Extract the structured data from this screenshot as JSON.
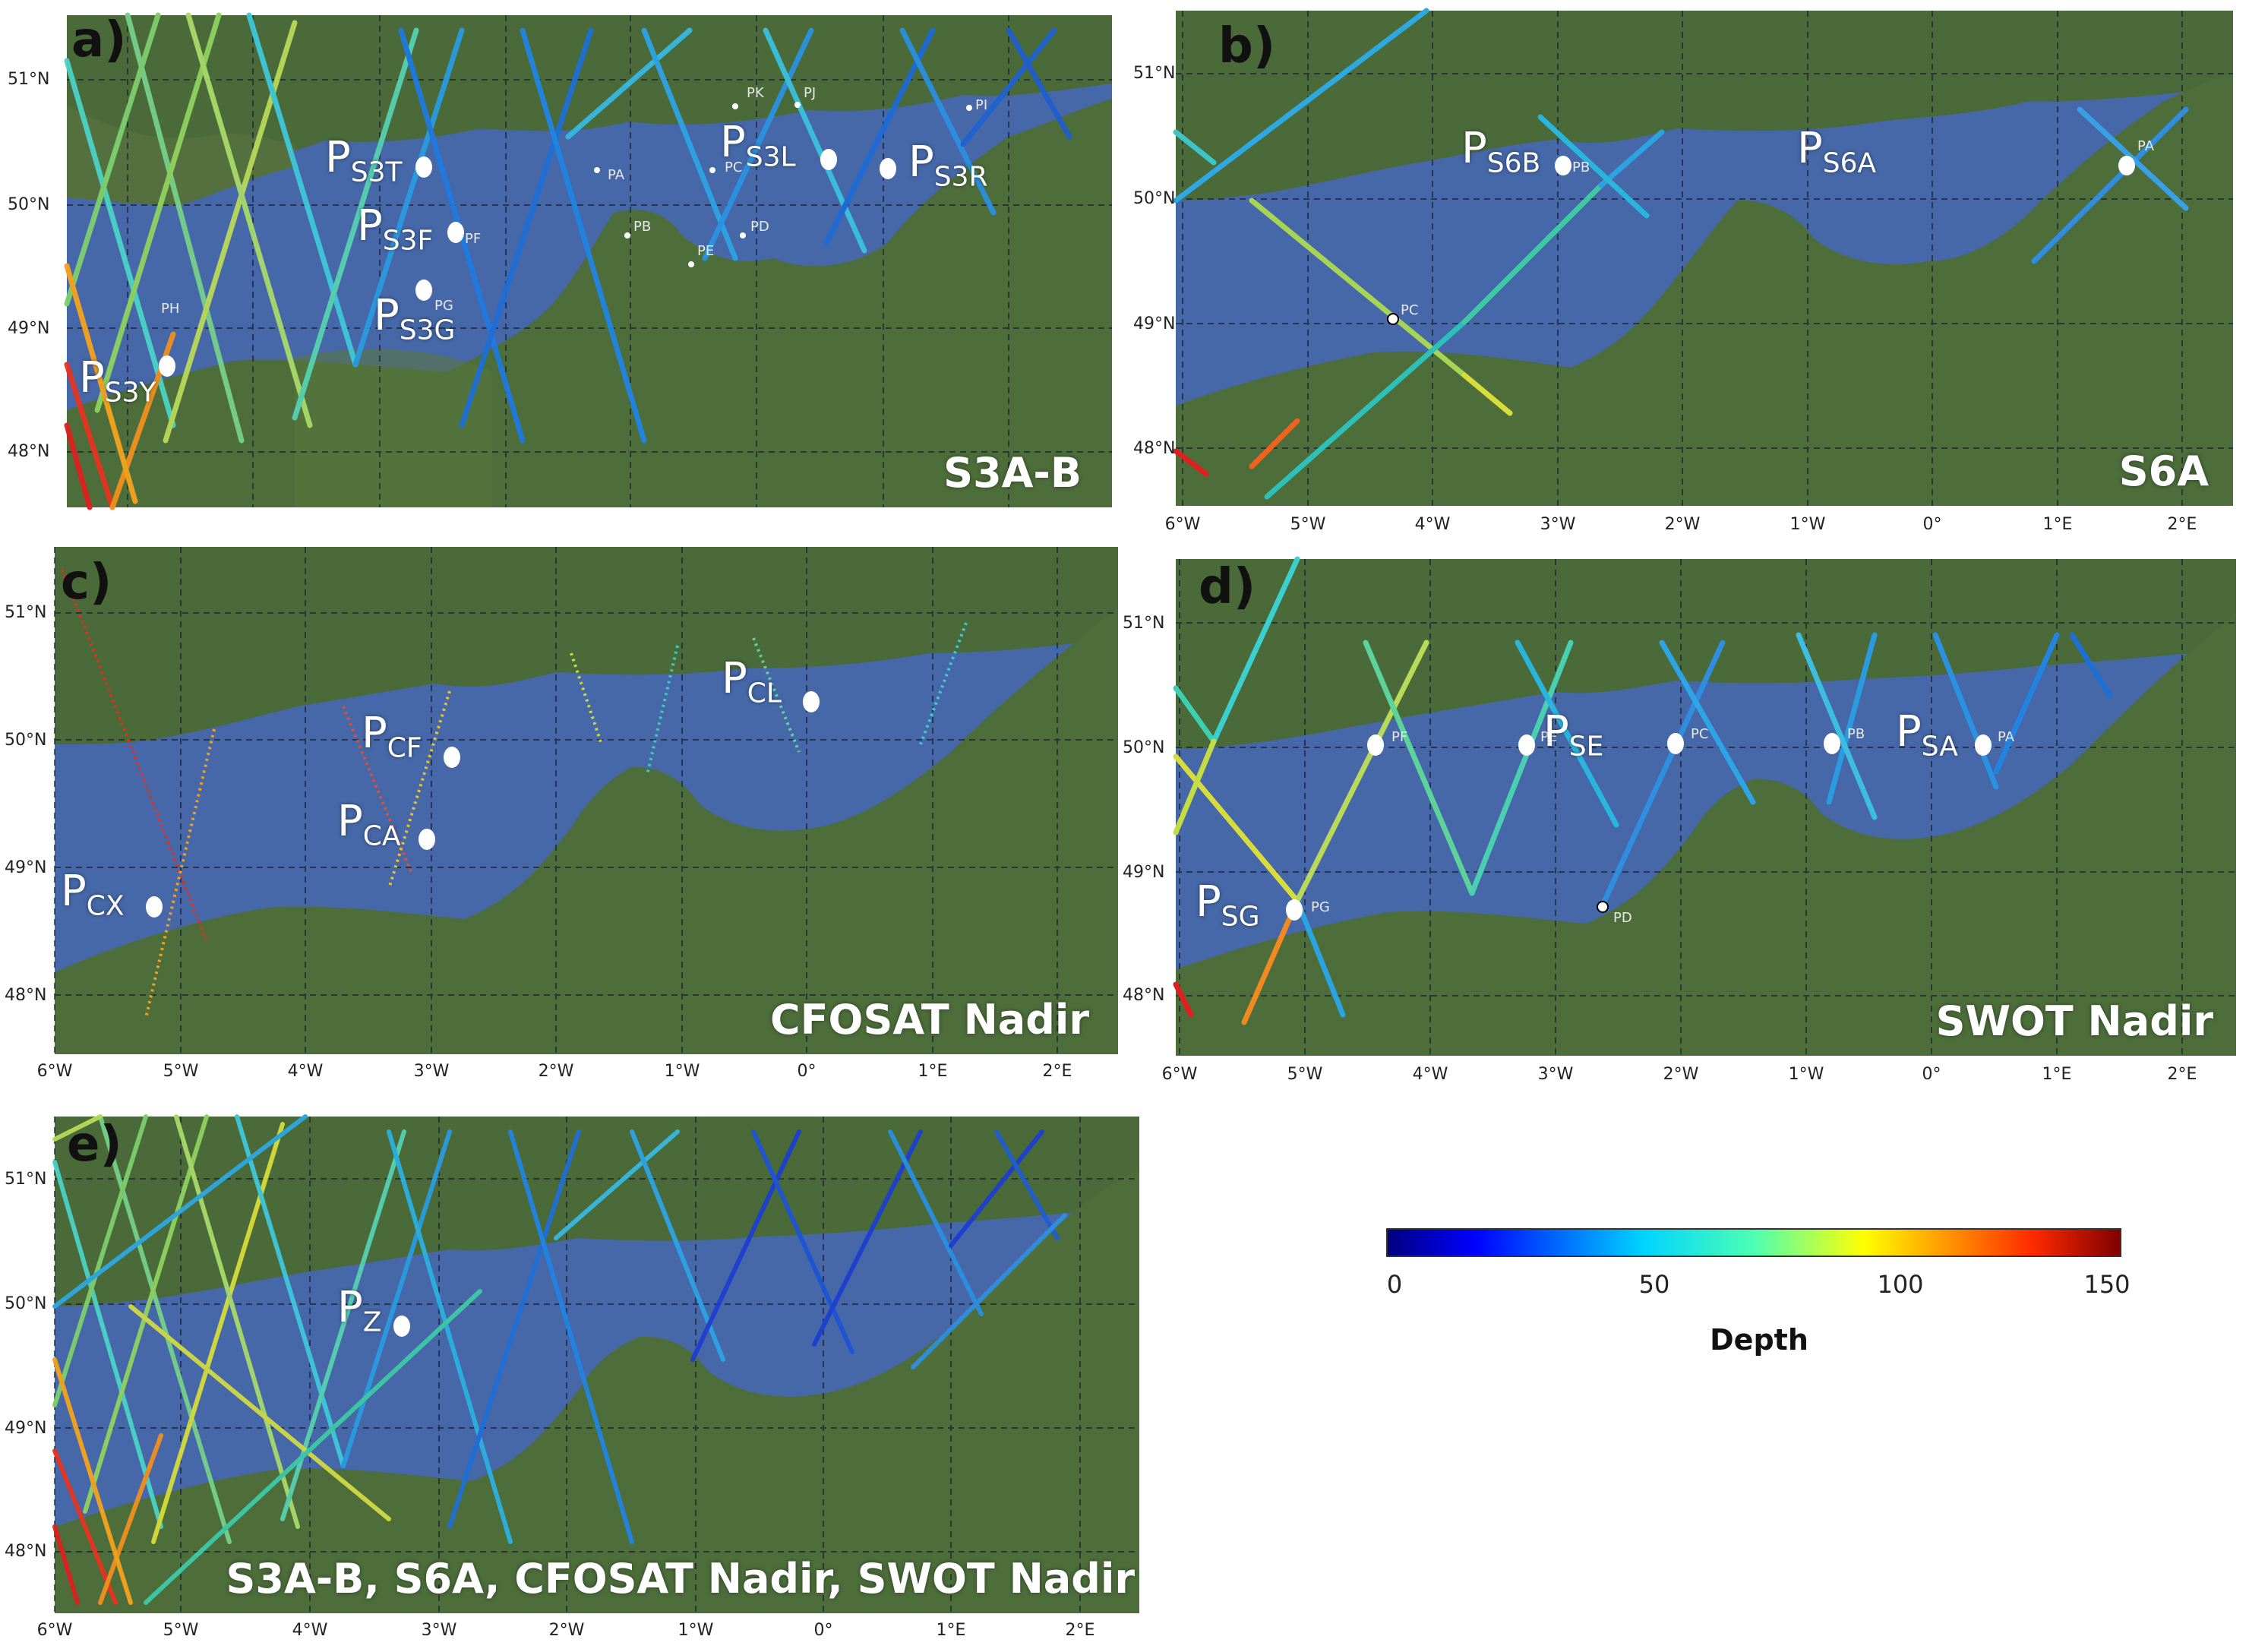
{
  "colors": {
    "sea": "#4668a8",
    "land": "#4a6a3a",
    "grid": "#1a2233"
  },
  "panels": [
    {
      "id": "a",
      "label": "a)",
      "title": "S3A-B",
      "lat_labels": [
        "51°N",
        "50°N",
        "49°N",
        "48°N"
      ],
      "lon_labels": [],
      "small_points": [
        "PK",
        "PJ",
        "PI",
        "PA",
        "PC",
        "PB",
        "PD",
        "PE",
        "PF",
        "PG",
        "PH"
      ],
      "big_points": [
        {
          "main": "P",
          "sub": "S3T"
        },
        {
          "main": "P",
          "sub": "S3F"
        },
        {
          "main": "P",
          "sub": "S3G"
        },
        {
          "main": "P",
          "sub": "S3Y"
        },
        {
          "main": "P",
          "sub": "S3L"
        },
        {
          "main": "P",
          "sub": "S3R"
        }
      ]
    },
    {
      "id": "b",
      "label": "b)",
      "title": "S6A",
      "lat_labels": [
        "51°N",
        "50°N",
        "49°N",
        "48°N"
      ],
      "lon_labels": [
        "6°W",
        "5°W",
        "4°W",
        "3°W",
        "2°W",
        "1°W",
        "0°",
        "1°E",
        "2°E"
      ],
      "small_points": [
        "PA",
        "PB",
        "PC"
      ],
      "big_points": [
        {
          "main": "P",
          "sub": "S6B"
        },
        {
          "main": "P",
          "sub": "S6A"
        }
      ]
    },
    {
      "id": "c",
      "label": "c)",
      "title": "CFOSAT Nadir",
      "lat_labels": [
        "51°N",
        "50°N",
        "49°N",
        "48°N"
      ],
      "lon_labels": [
        "6°W",
        "5°W",
        "4°W",
        "3°W",
        "2°W",
        "1°W",
        "0°",
        "1°E",
        "2°E"
      ],
      "small_points": [],
      "big_points": [
        {
          "main": "P",
          "sub": "CL"
        },
        {
          "main": "P",
          "sub": "CF"
        },
        {
          "main": "P",
          "sub": "CA"
        },
        {
          "main": "P",
          "sub": "CX"
        }
      ]
    },
    {
      "id": "d",
      "label": "d)",
      "title": "SWOT Nadir",
      "lat_labels": [
        "51°N",
        "50°N",
        "49°N",
        "48°N"
      ],
      "lon_labels": [
        "6°W",
        "5°W",
        "4°W",
        "3°W",
        "2°W",
        "1°W",
        "0°",
        "1°E",
        "2°E"
      ],
      "small_points": [
        "PF",
        "PE",
        "PC",
        "PB",
        "PA",
        "PG",
        "PD"
      ],
      "big_points": [
        {
          "main": "P",
          "sub": "SE"
        },
        {
          "main": "P",
          "sub": "SA"
        },
        {
          "main": "P",
          "sub": "SG"
        }
      ]
    },
    {
      "id": "e",
      "label": "e)",
      "title": "S3A-B, S6A, CFOSAT Nadir, SWOT Nadir",
      "lat_labels": [
        "51°N",
        "50°N",
        "49°N",
        "48°N"
      ],
      "lon_labels": [
        "6°W",
        "5°W",
        "4°W",
        "3°W",
        "2°W",
        "1°W",
        "0°",
        "1°E",
        "2°E"
      ],
      "small_points": [],
      "big_points": [
        {
          "main": "P",
          "sub": "Z"
        }
      ]
    }
  ],
  "colorbar": {
    "label": "Depth",
    "ticks": [
      "0",
      "50",
      "100",
      "150"
    ],
    "range": [
      0,
      150
    ],
    "colormap": "jet"
  }
}
